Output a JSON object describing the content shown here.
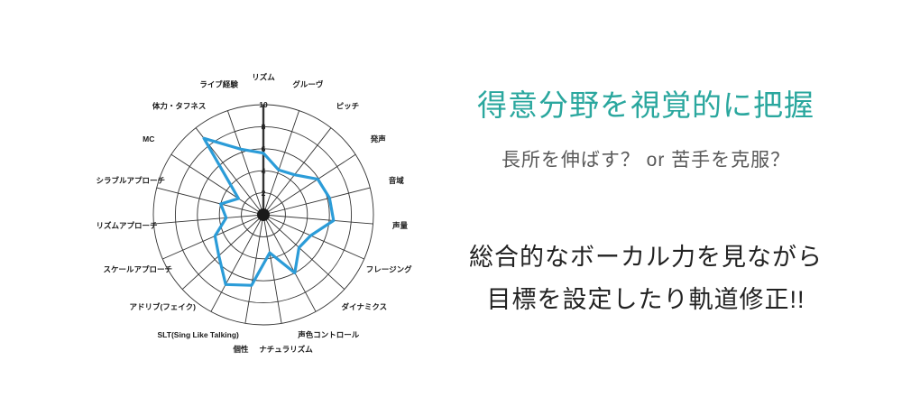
{
  "page": {
    "background": "#ffffff"
  },
  "panel": {
    "headline": "得意分野を視覚的に把握",
    "headline_color": "#2aa79e",
    "subtitle": "長所を伸ばす？ or 苦手を克服？",
    "body_line1": "総合的なボーカル力を見ながら",
    "body_line2": "目標を設定したり軌道修正!!"
  },
  "chart_data": {
    "type": "radar",
    "title": "",
    "categories": [
      "リズム",
      "グルーヴ",
      "ピッチ",
      "発声",
      "音域",
      "声量",
      "フレージング",
      "ダイナミクス",
      "声色コントロール",
      "ナチュラリズム",
      "個性",
      "SLT(Sing Like Talking)",
      "アドリブ(フェイク)",
      "スケールアプローチ",
      "リズムアプローチ",
      "シラブルアプローチ",
      "MC",
      "体力・タフネス",
      "ライブ経験"
    ],
    "values": [
      5.6,
      4.3,
      4.6,
      5.9,
      6.2,
      6.4,
      4.7,
      4.4,
      6.0,
      3.5,
      6.5,
      7.2,
      5.5,
      4.8,
      3.4,
      4.0,
      2.7,
      8.8,
      6.3
    ],
    "ticks": [
      2,
      4,
      6,
      8,
      10
    ],
    "max": 10,
    "axis_range": [
      0,
      10
    ],
    "grid": true,
    "legend": "none",
    "line_color": "#2b9cd8",
    "grid_color": "#333333",
    "label_color": "#1a1a1a"
  }
}
